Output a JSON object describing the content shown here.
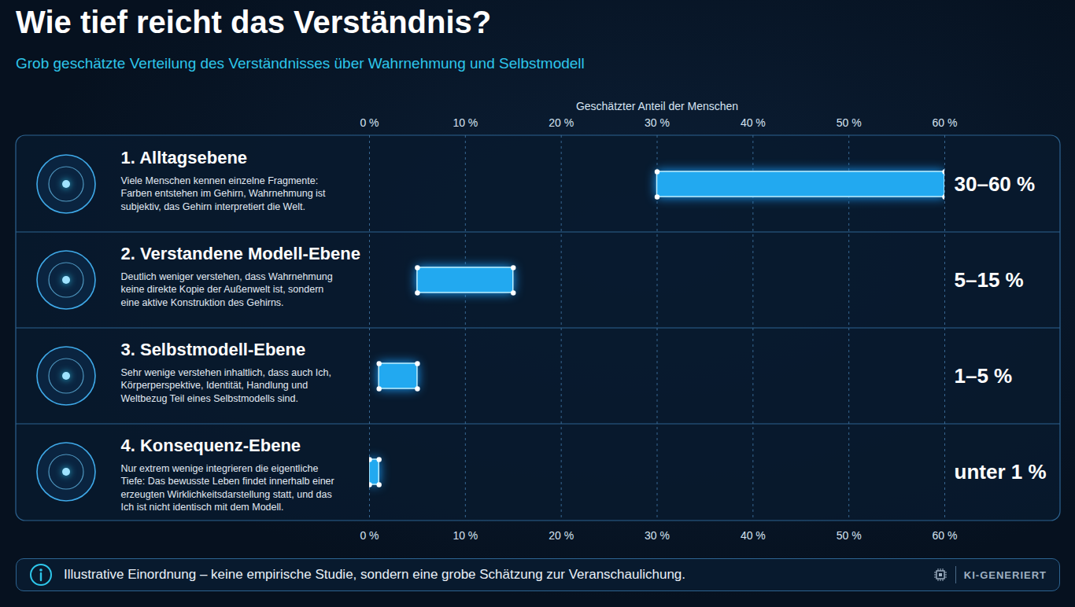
{
  "chart_data": {
    "type": "bar",
    "orientation": "horizontal",
    "title": "Wie tief reicht das Verständnis?",
    "subtitle": "Grob geschätzte Verteilung des Verständnisses über Wahrnehmung und Selbstmodell",
    "xlabel": "Geschätzter Anteil der Menschen",
    "categories": [
      "1. Alltagsebene",
      "2. Verstandene Modell-Ebene",
      "3. Selbstmodell-Ebene",
      "4. Konsequenz-Ebene"
    ],
    "descriptions": [
      "Viele Menschen kennen einzelne Fragmente: Farben entstehen im Gehirn, Wahrnehmung ist subjektiv, das Gehirn interpretiert die Welt.",
      "Deutlich weniger verstehen, dass Wahrnehmung keine direkte Kopie der Außenwelt ist, sondern eine aktive Konstruktion des Gehirns.",
      "Sehr wenige verstehen inhaltlich, dass auch Ich, Körperperspektive, Identität, Handlung und Weltbezug Teil eines Selbstmodells sind.",
      "Nur extrem wenige integrieren die eigentliche Tiefe: Das bewusste Leben findet innerhalb einer erzeugten Wirklichkeitsdarstellung statt, und das Ich ist nicht identisch mit dem Modell."
    ],
    "values": [
      [
        30,
        60
      ],
      [
        5,
        15
      ],
      [
        1,
        5
      ],
      [
        0,
        1
      ]
    ],
    "value_labels": [
      "30–60 %",
      "5–15 %",
      "1–5 %",
      "unter 1 %"
    ],
    "data_labels": true,
    "color": "#22a9f0",
    "xlim": [
      0,
      60
    ],
    "xticks": [
      {
        "value": 0,
        "label": "0 %"
      },
      {
        "value": 10,
        "label": "10 %"
      },
      {
        "value": 20,
        "label": "20 %"
      },
      {
        "value": 30,
        "label": "30 %"
      },
      {
        "value": 40,
        "label": "40 %"
      },
      {
        "value": 50,
        "label": "50 %"
      },
      {
        "value": 60,
        "label": "60 %"
      }
    ],
    "grid": true,
    "note": "Illustrative Einordnung – keine empirische Studie, sondern eine grobe Schätzung zur Veranschaulichung.",
    "badge": "KI-GENERIERT"
  }
}
